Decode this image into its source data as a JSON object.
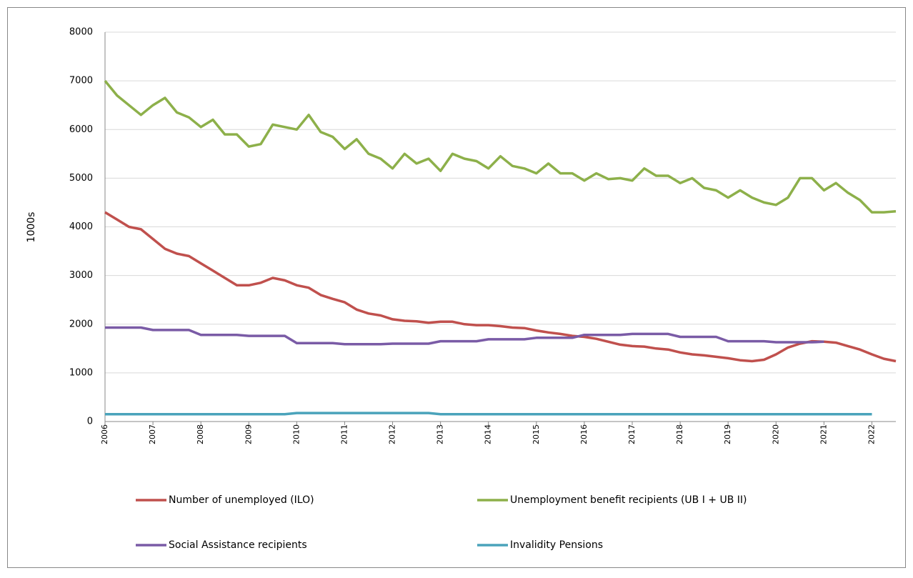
{
  "chart_data": {
    "type": "line",
    "ylabel": "1000s",
    "x": [
      2006,
      2006.25,
      2006.5,
      2006.75,
      2007,
      2007.25,
      2007.5,
      2007.75,
      2008,
      2008.25,
      2008.5,
      2008.75,
      2009,
      2009.25,
      2009.5,
      2009.75,
      2010,
      2010.25,
      2010.5,
      2010.75,
      2011,
      2011.25,
      2011.5,
      2011.75,
      2012,
      2012.25,
      2012.5,
      2012.75,
      2013,
      2013.25,
      2013.5,
      2013.75,
      2014,
      2014.25,
      2014.5,
      2014.75,
      2015,
      2015.25,
      2015.5,
      2015.75,
      2016,
      2016.25,
      2016.5,
      2016.75,
      2017,
      2017.25,
      2017.5,
      2017.75,
      2018,
      2018.25,
      2018.5,
      2018.75,
      2019,
      2019.25,
      2019.5,
      2019.75,
      2020,
      2020.25,
      2020.5,
      2020.75,
      2021,
      2021.25,
      2021.5,
      2021.75,
      2022,
      2022.25,
      2022.5
    ],
    "xlim": [
      2006,
      2022.5
    ],
    "xticks": [
      2006,
      2007,
      2008,
      2009,
      2010,
      2011,
      2012,
      2013,
      2014,
      2015,
      2016,
      2017,
      2018,
      2019,
      2020,
      2021,
      2022
    ],
    "ylim": [
      0,
      8000
    ],
    "yticks": [
      0,
      1000,
      2000,
      3000,
      4000,
      5000,
      6000,
      7000,
      8000
    ],
    "grid": true,
    "series": [
      {
        "name": "Number of unemployed (ILO)",
        "color": "#c0504d",
        "values": [
          4300,
          4150,
          4000,
          3950,
          3750,
          3550,
          3450,
          3400,
          3250,
          3100,
          2950,
          2800,
          2800,
          2850,
          2950,
          2900,
          2800,
          2750,
          2600,
          2520,
          2450,
          2300,
          2220,
          2180,
          2100,
          2070,
          2060,
          2030,
          2050,
          2050,
          2000,
          1980,
          1980,
          1960,
          1930,
          1920,
          1870,
          1830,
          1800,
          1760,
          1740,
          1700,
          1640,
          1580,
          1550,
          1540,
          1500,
          1480,
          1420,
          1380,
          1360,
          1330,
          1300,
          1260,
          1240,
          1270,
          1380,
          1520,
          1600,
          1650,
          1640,
          1620,
          1550,
          1480,
          1380,
          1290,
          1240
        ]
      },
      {
        "name": "Unemployment benefit recipients (UB I + UB II)",
        "color": "#8db04a",
        "values": [
          7000,
          6700,
          6500,
          6300,
          6500,
          6650,
          6350,
          6250,
          6050,
          6200,
          5900,
          5900,
          5650,
          5700,
          6100,
          6050,
          6000,
          6300,
          5950,
          5850,
          5600,
          5800,
          5500,
          5400,
          5200,
          5500,
          5300,
          5400,
          5150,
          5500,
          5400,
          5350,
          5200,
          5450,
          5250,
          5200,
          5100,
          5300,
          5100,
          5100,
          4950,
          5100,
          4980,
          5000,
          4950,
          5200,
          5050,
          5050,
          4900,
          5000,
          4800,
          4750,
          4600,
          4750,
          4600,
          4500,
          4450,
          4600,
          5000,
          5000,
          4750,
          4900,
          4700,
          4550,
          4300,
          4300,
          4320
        ]
      },
      {
        "name": "Social Assistance recipients",
        "color": "#7a5ba6",
        "values": [
          1930,
          1930,
          1930,
          1930,
          1880,
          1880,
          1880,
          1880,
          1780,
          1780,
          1780,
          1780,
          1760,
          1760,
          1760,
          1760,
          1610,
          1610,
          1610,
          1610,
          1590,
          1590,
          1590,
          1590,
          1600,
          1600,
          1600,
          1600,
          1650,
          1650,
          1650,
          1650,
          1690,
          1690,
          1690,
          1690,
          1720,
          1720,
          1720,
          1720,
          1780,
          1780,
          1780,
          1780,
          1800,
          1800,
          1800,
          1800,
          1740,
          1740,
          1740,
          1740,
          1650,
          1650,
          1650,
          1650,
          1630,
          1630,
          1630,
          1630,
          1640,
          null,
          null,
          null,
          null,
          null,
          null
        ]
      },
      {
        "name": "Invalidity Pensions",
        "color": "#4aa3bb",
        "values": [
          150,
          150,
          150,
          150,
          150,
          150,
          150,
          150,
          150,
          150,
          150,
          150,
          150,
          150,
          150,
          150,
          175,
          175,
          175,
          175,
          175,
          175,
          175,
          175,
          175,
          175,
          175,
          175,
          150,
          150,
          150,
          150,
          150,
          150,
          150,
          150,
          150,
          150,
          150,
          150,
          150,
          150,
          150,
          150,
          150,
          150,
          150,
          150,
          150,
          150,
          150,
          150,
          150,
          150,
          150,
          150,
          150,
          150,
          150,
          150,
          150,
          150,
          150,
          150,
          150,
          null,
          null
        ]
      }
    ]
  }
}
